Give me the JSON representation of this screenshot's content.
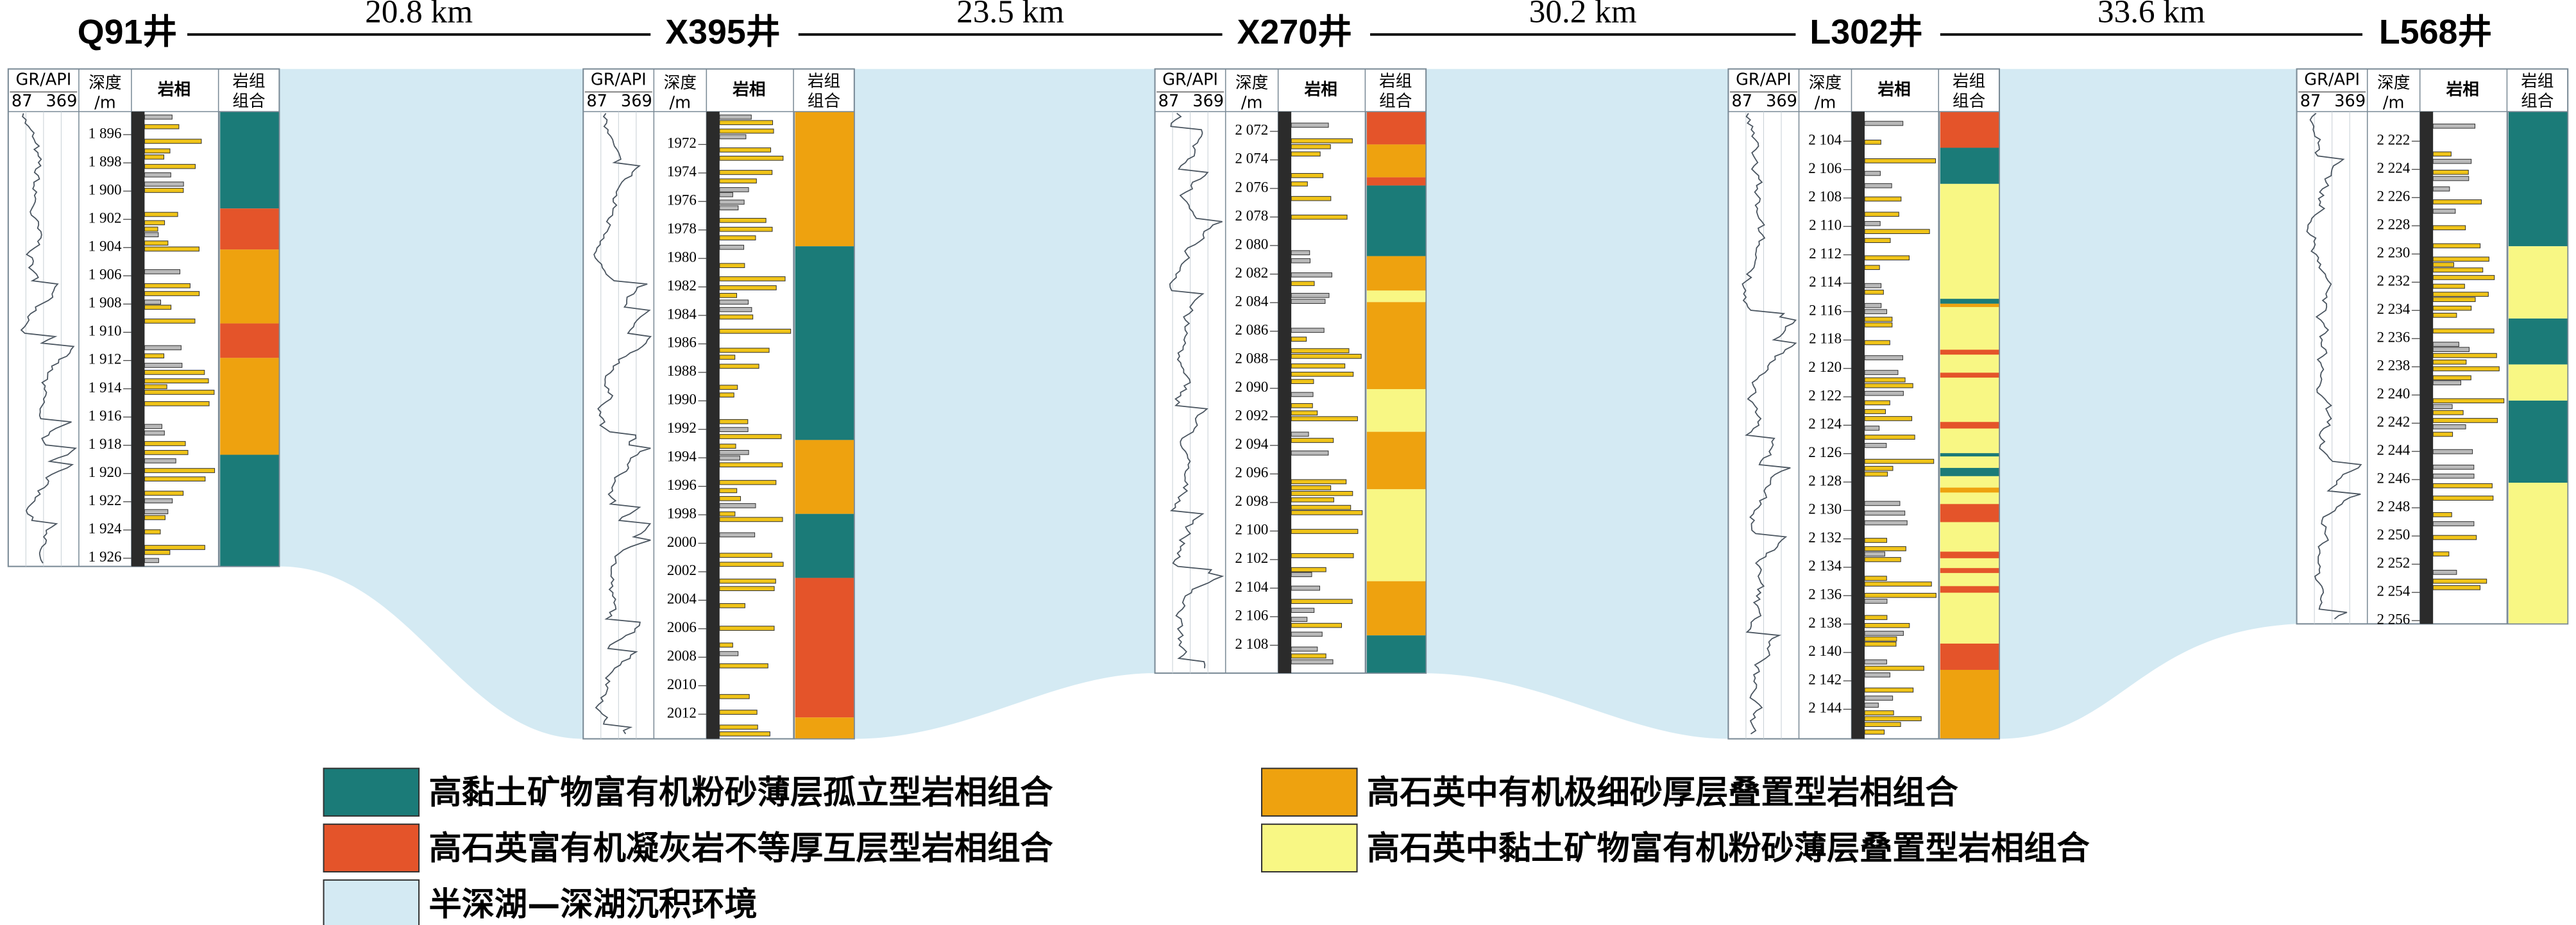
{
  "wells": [
    {
      "name": "Q91井",
      "depth_ticks": [
        "1 896",
        "1 898",
        "1 900",
        "1 902",
        "1 904",
        "1 906",
        "1 908",
        "1 910",
        "1 912",
        "1 914",
        "1 916",
        "1 918",
        "1 920",
        "1 922",
        "1 924",
        "1 926"
      ]
    },
    {
      "name": "X395井",
      "depth_ticks": [
        "1972",
        "1974",
        "1976",
        "1978",
        "1980",
        "1982",
        "1984",
        "1986",
        "1988",
        "1990",
        "1992",
        "1994",
        "1996",
        "1998",
        "2000",
        "2002",
        "2004",
        "2006",
        "2008",
        "2010",
        "2012"
      ]
    },
    {
      "name": "X270井",
      "depth_ticks": [
        "2 072",
        "2 074",
        "2 076",
        "2 078",
        "2 080",
        "2 082",
        "2 084",
        "2 086",
        "2 088",
        "2 090",
        "2 092",
        "2 094",
        "2 096",
        "2 098",
        "2 100",
        "2 102",
        "2 104",
        "2 106",
        "2 108"
      ]
    },
    {
      "name": "L302井",
      "depth_ticks": [
        "2 104",
        "2 106",
        "2 108",
        "2 110",
        "2 112",
        "2 114",
        "2 116",
        "2 118",
        "2 120",
        "2 122",
        "2 124",
        "2 126",
        "2 128",
        "2 130",
        "2 132",
        "2 134",
        "2 136",
        "2 138",
        "2 140",
        "2 142",
        "2 144"
      ]
    },
    {
      "name": "L568井",
      "depth_ticks": [
        "2 222",
        "2 224",
        "2 226",
        "2 228",
        "2 230",
        "2 232",
        "2 234",
        "2 236",
        "2 238",
        "2 240",
        "2 242",
        "2 244",
        "2 246",
        "2 248",
        "2 250",
        "2 252",
        "2 254",
        "2 256"
      ]
    }
  ],
  "distances": [
    "20.8  km",
    "23.5  km",
    "30.2  km",
    "33.6  km"
  ],
  "column_headers": {
    "gr": "GR/API",
    "gr_min": "87",
    "gr_max": "369",
    "depth_line1": "深度",
    "depth_line2": "/m",
    "lithofacies": "岩相",
    "assemblage_line1": "岩组",
    "assemblage_line2": "组合"
  },
  "legend": [
    {
      "label": "高黏土矿物富有机粉砂薄层孤立型岩相组合",
      "color": "#1b7b78"
    },
    {
      "label": "高石英富有机凝灰岩不等厚互层型岩相组合",
      "color": "#e4542a"
    },
    {
      "label": "半深湖—深湖沉积环境",
      "color": "#d4eaf3"
    },
    {
      "label": "高石英中有机极细砂厚层叠置型岩相组合",
      "color": "#eea20f"
    },
    {
      "label": "高石英中黏土矿物富有机粉砂薄层叠置型岩相组合",
      "color": "#f8f784"
    }
  ]
}
